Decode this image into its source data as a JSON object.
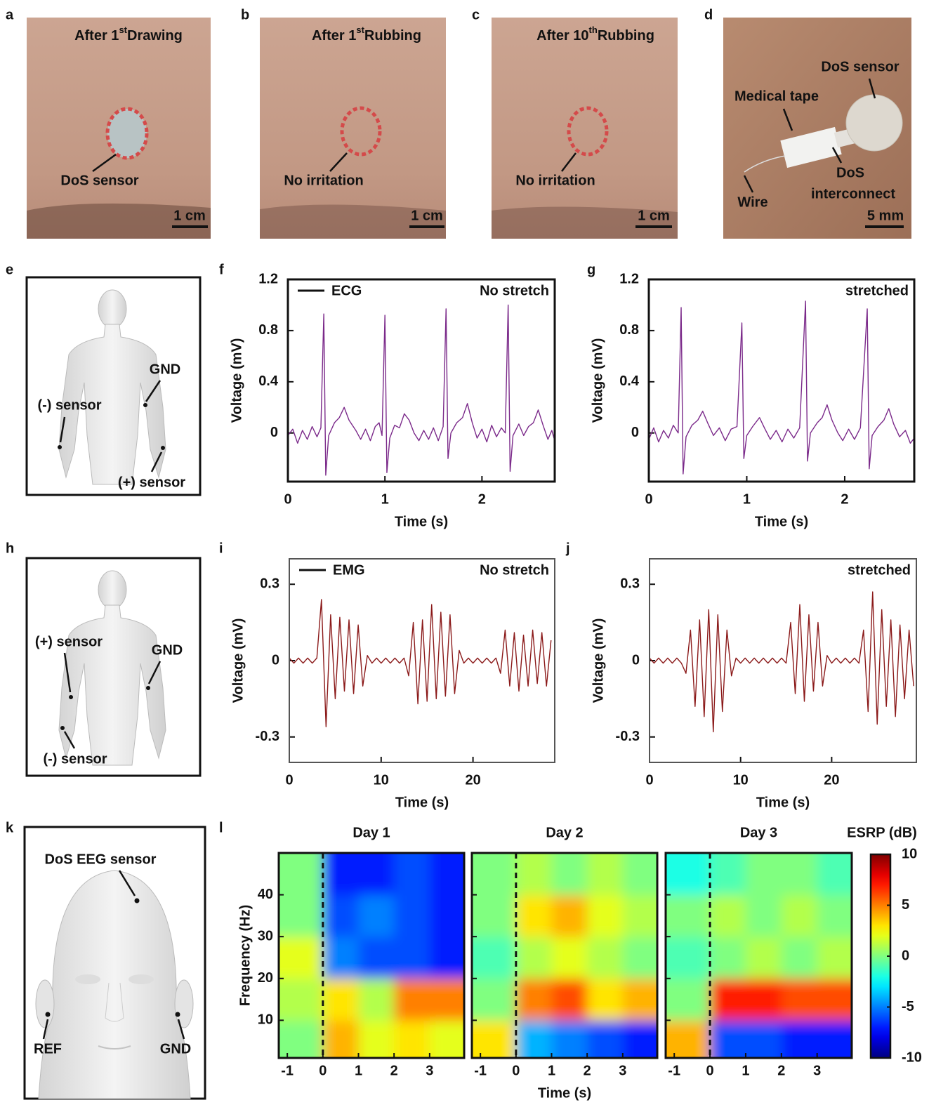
{
  "panel_letters": [
    "a",
    "b",
    "c",
    "d",
    "e",
    "f",
    "g",
    "h",
    "i",
    "j",
    "k",
    "l"
  ],
  "photos": [
    {
      "title_pre": "After 1",
      "title_sup": "st",
      "title_post": "Drawing",
      "label": "DoS sensor",
      "scale_bar": "1 cm"
    },
    {
      "title_pre": "After 1",
      "title_sup": "st",
      "title_post": "Rubbing",
      "label": "No irritation",
      "scale_bar": "1 cm"
    },
    {
      "title_pre": "After 10",
      "title_sup": "th",
      "title_post": "Rubbing",
      "label": "No irritation",
      "scale_bar": "1 cm"
    },
    {
      "labels": [
        "DoS sensor",
        "Medical tape",
        "DoS",
        "interconnect",
        "Wire"
      ],
      "scale_bar": "5 mm"
    }
  ],
  "diagrams": {
    "ecg": [
      "GND",
      "(-) sensor",
      "(+) sensor"
    ],
    "emg": [
      "(+) sensor",
      "GND",
      "(-) sensor"
    ],
    "eeg": [
      "DoS EEG sensor",
      "REF",
      "GND"
    ]
  },
  "chart_data": [
    {
      "type": "line",
      "annotation": "No stretch",
      "xlabel": "Time (s)",
      "ylabel": "Voltage (mV)",
      "xlim": [
        0,
        2.75
      ],
      "ylim": [
        -0.38,
        1.2
      ],
      "xticks": [
        0,
        1,
        2
      ],
      "yticks": [
        0,
        0.4,
        0.8,
        1.2
      ],
      "x": [
        0,
        0.05,
        0.1,
        0.15,
        0.2,
        0.25,
        0.3,
        0.34,
        0.37,
        0.39,
        0.42,
        0.48,
        0.53,
        0.58,
        0.63,
        0.7,
        0.75,
        0.8,
        0.85,
        0.9,
        0.94,
        0.97,
        1.0,
        1.02,
        1.05,
        1.1,
        1.15,
        1.2,
        1.25,
        1.3,
        1.35,
        1.4,
        1.45,
        1.5,
        1.55,
        1.6,
        1.63,
        1.65,
        1.68,
        1.74,
        1.8,
        1.85,
        1.9,
        1.95,
        2.0,
        2.05,
        2.1,
        2.15,
        2.2,
        2.24,
        2.27,
        2.29,
        2.32,
        2.38,
        2.43,
        2.48,
        2.53,
        2.58,
        2.63,
        2.68,
        2.72,
        2.75
      ],
      "series": [
        {
          "name": "ECG",
          "color": "#7b2a8a",
          "values": [
            -0.02,
            0.03,
            -0.08,
            0.02,
            -0.05,
            0.05,
            -0.03,
            0.04,
            0.93,
            -0.33,
            -0.02,
            0.08,
            0.12,
            0.2,
            0.1,
            0.02,
            -0.05,
            0.03,
            -0.06,
            0.05,
            0.08,
            -0.02,
            0.92,
            -0.31,
            -0.04,
            0.06,
            0.04,
            0.15,
            0.1,
            0.0,
            -0.06,
            0.02,
            -0.05,
            0.04,
            -0.06,
            0.05,
            0.97,
            -0.2,
            0.0,
            0.08,
            0.12,
            0.23,
            0.08,
            -0.04,
            0.03,
            -0.07,
            0.06,
            -0.03,
            0.04,
            0.0,
            1.0,
            -0.3,
            -0.02,
            0.07,
            -0.02,
            0.05,
            0.08,
            0.18,
            0.06,
            -0.05,
            0.02,
            -0.06
          ]
        }
      ]
    },
    {
      "type": "line",
      "annotation": "stretched",
      "xlabel": "Time (s)",
      "ylabel": "Voltage (mV)",
      "xlim": [
        0,
        2.71
      ],
      "ylim": [
        -0.38,
        1.2
      ],
      "xticks": [
        0,
        1,
        2
      ],
      "yticks": [
        0,
        0.4,
        0.8,
        1.2
      ],
      "x": [
        0,
        0.05,
        0.1,
        0.15,
        0.2,
        0.25,
        0.3,
        0.33,
        0.35,
        0.38,
        0.44,
        0.5,
        0.55,
        0.6,
        0.66,
        0.72,
        0.78,
        0.84,
        0.9,
        0.95,
        0.97,
        1.0,
        1.06,
        1.13,
        1.18,
        1.24,
        1.3,
        1.36,
        1.42,
        1.48,
        1.54,
        1.6,
        1.62,
        1.65,
        1.72,
        1.77,
        1.82,
        1.87,
        1.93,
        1.98,
        2.04,
        2.1,
        2.16,
        2.23,
        2.25,
        2.28,
        2.34,
        2.4,
        2.45,
        2.5,
        2.56,
        2.62,
        2.67,
        2.71
      ],
      "series": [
        {
          "color": "#7b2a8a",
          "values": [
            -0.05,
            0.04,
            -0.07,
            0.02,
            -0.04,
            0.06,
            0.0,
            0.98,
            -0.32,
            -0.03,
            0.06,
            0.1,
            0.17,
            0.08,
            -0.02,
            0.04,
            -0.06,
            0.03,
            0.05,
            0.86,
            -0.2,
            -0.02,
            0.05,
            0.12,
            0.04,
            -0.05,
            0.02,
            -0.07,
            0.03,
            -0.04,
            0.04,
            1.03,
            -0.22,
            0.0,
            0.08,
            0.12,
            0.22,
            0.1,
            0.0,
            -0.06,
            0.03,
            -0.05,
            0.04,
            0.97,
            -0.28,
            -0.02,
            0.05,
            0.1,
            0.19,
            0.07,
            -0.03,
            0.02,
            -0.08,
            -0.04
          ]
        }
      ]
    },
    {
      "type": "line",
      "annotation": "No stretch",
      "xlabel": "Time (s)",
      "ylabel": "Voltage (mV)",
      "xlim": [
        0,
        28.9
      ],
      "ylim": [
        -0.4,
        0.4
      ],
      "xticks": [
        0,
        10,
        20
      ],
      "yticks": [
        -0.3,
        0,
        0.3
      ],
      "x": [
        0,
        0.5,
        1,
        1.5,
        2,
        2.5,
        3,
        3.5,
        4,
        4.5,
        5,
        5.5,
        6,
        6.5,
        7,
        7.5,
        8,
        8.5,
        9,
        9.5,
        10,
        10.5,
        11,
        11.5,
        12,
        12.5,
        13,
        13.5,
        14,
        14.5,
        15,
        15.5,
        16,
        16.5,
        17,
        17.5,
        18,
        18.5,
        19,
        19.5,
        20,
        20.5,
        21,
        21.5,
        22,
        22.5,
        23,
        23.5,
        24,
        24.5,
        25,
        25.5,
        26,
        26.5,
        27,
        27.5,
        28,
        28.5
      ],
      "series": [
        {
          "name": "EMG",
          "color": "#8b1a1a",
          "values": [
            0.01,
            -0.01,
            0.01,
            -0.01,
            0.01,
            -0.01,
            0.01,
            0.24,
            -0.26,
            0.18,
            -0.15,
            0.17,
            -0.12,
            0.16,
            -0.13,
            0.14,
            -0.1,
            0.02,
            -0.01,
            0.01,
            -0.01,
            0.01,
            -0.01,
            0.01,
            -0.01,
            0.01,
            -0.06,
            0.15,
            -0.17,
            0.16,
            -0.16,
            0.22,
            -0.15,
            0.19,
            -0.14,
            0.18,
            -0.13,
            0.04,
            -0.01,
            0.01,
            -0.01,
            0.01,
            -0.01,
            0.01,
            -0.01,
            0.01,
            -0.05,
            0.12,
            -0.1,
            0.11,
            -0.12,
            0.1,
            -0.1,
            0.12,
            -0.09,
            0.11,
            -0.1,
            0.08
          ]
        }
      ]
    },
    {
      "type": "line",
      "annotation": "stretched",
      "xlabel": "Time (s)",
      "ylabel": "Voltage (mV)",
      "xlim": [
        0,
        29.3
      ],
      "ylim": [
        -0.4,
        0.4
      ],
      "xticks": [
        0,
        10,
        20
      ],
      "yticks": [
        -0.3,
        0,
        0.3
      ],
      "x": [
        0,
        0.5,
        1,
        1.5,
        2,
        2.5,
        3,
        3.5,
        4,
        4.5,
        5,
        5.5,
        6,
        6.5,
        7,
        7.5,
        8,
        8.5,
        9,
        9.5,
        10,
        10.5,
        11,
        11.5,
        12,
        12.5,
        13,
        13.5,
        14,
        14.5,
        15,
        15.5,
        16,
        16.5,
        17,
        17.5,
        18,
        18.5,
        19,
        19.5,
        20,
        20.5,
        21,
        21.5,
        22,
        22.5,
        23,
        23.5,
        24,
        24.5,
        25,
        25.5,
        26,
        26.5,
        27,
        27.5,
        28,
        28.5,
        29
      ],
      "series": [
        {
          "color": "#8b1a1a",
          "values": [
            0.01,
            -0.01,
            0.01,
            -0.01,
            0.01,
            -0.01,
            0.01,
            -0.01,
            -0.05,
            0.12,
            -0.18,
            0.16,
            -0.22,
            0.2,
            -0.28,
            0.18,
            -0.2,
            0.12,
            -0.06,
            0.01,
            -0.01,
            0.01,
            -0.01,
            0.01,
            -0.01,
            0.01,
            -0.01,
            0.01,
            -0.01,
            0.01,
            -0.01,
            0.15,
            -0.13,
            0.22,
            -0.16,
            0.18,
            -0.12,
            0.15,
            -0.1,
            0.02,
            -0.01,
            0.01,
            -0.01,
            0.01,
            -0.01,
            0.01,
            -0.01,
            0.12,
            -0.2,
            0.27,
            -0.25,
            0.2,
            -0.18,
            0.16,
            -0.22,
            0.14,
            -0.15,
            0.12,
            -0.1
          ]
        }
      ]
    },
    {
      "type": "heatmap",
      "xlabel": "Time (s)",
      "ylabel": "Frequency (Hz)",
      "xlim": [
        -1.24,
        3.97
      ],
      "ylim": [
        1,
        50
      ],
      "xticks": [
        -1,
        0,
        1,
        2,
        3
      ],
      "yticks": [
        10,
        20,
        30,
        40
      ],
      "x_bins": [
        -1.24,
        0,
        1,
        2,
        3,
        3.97
      ],
      "y_bins": [
        1,
        10,
        20,
        30,
        40,
        50
      ],
      "vline_x": 0,
      "panels": [
        {
          "title": "Day 1",
          "z": [
            [
              0,
              4,
              2,
              3,
              2
            ],
            [
              1,
              3,
              1,
              5,
              5
            ],
            [
              2,
              -5,
              -6,
              -6,
              -7
            ],
            [
              0,
              -6,
              -5,
              -6,
              -7
            ],
            [
              0,
              -7,
              -7,
              -6,
              -7
            ]
          ]
        },
        {
          "title": "Day 2",
          "z": [
            [
              3,
              -4,
              -5,
              -6,
              -7
            ],
            [
              0,
              5,
              6,
              3,
              4
            ],
            [
              -1,
              1,
              2,
              1,
              0
            ],
            [
              0,
              3,
              4,
              2,
              1
            ],
            [
              0,
              1,
              0,
              1,
              0
            ]
          ]
        },
        {
          "title": "Day 3",
          "z": [
            [
              4,
              -6,
              -6,
              -7,
              -7
            ],
            [
              0,
              7,
              7,
              6,
              6
            ],
            [
              -1,
              0,
              1,
              0,
              1
            ],
            [
              0,
              1,
              0,
              1,
              0
            ],
            [
              -2,
              -1,
              0,
              0,
              -1
            ]
          ]
        }
      ],
      "colorbar": {
        "label": "ESRP (dB)",
        "lim": [
          -10,
          10
        ],
        "ticks": [
          10,
          5,
          0,
          -5,
          -10
        ],
        "colormap": "jet"
      }
    }
  ]
}
